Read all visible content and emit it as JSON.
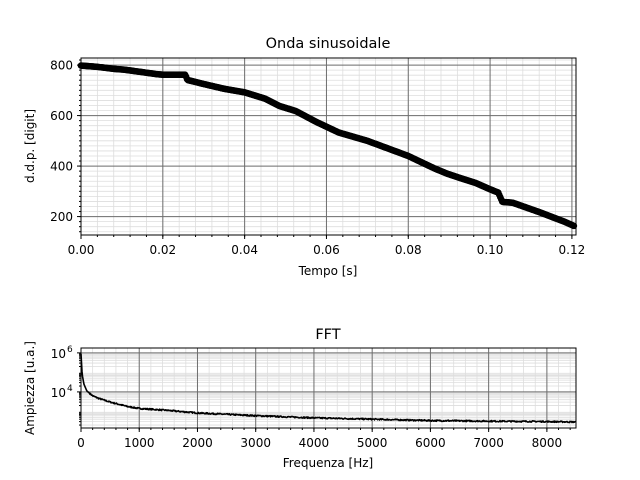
{
  "chart_data": [
    {
      "type": "scatter",
      "title": "Onda sinusoidale",
      "xlabel": "Tempo [s]",
      "ylabel": "d.d.p. [digit]",
      "xlim": [
        0.0,
        0.121
      ],
      "ylim": [
        127,
        828
      ],
      "xticks": [
        0.0,
        0.02,
        0.04,
        0.06,
        0.08,
        0.1,
        0.12
      ],
      "xtick_labels": [
        "0.00",
        "0.02",
        "0.04",
        "0.06",
        "0.08",
        "0.10",
        "0.12"
      ],
      "yticks": [
        200,
        400,
        600,
        800
      ],
      "ytick_labels": [
        "200",
        "400",
        "600",
        "800"
      ],
      "grid": "major and minor",
      "series": [
        {
          "color": "#000000",
          "x": [
            0.0,
            0.004,
            0.008,
            0.0105,
            0.015,
            0.0185,
            0.02,
            0.0255,
            0.026,
            0.03,
            0.035,
            0.04,
            0.045,
            0.0485,
            0.0525,
            0.0575,
            0.063,
            0.07,
            0.075,
            0.08,
            0.0835,
            0.0865,
            0.0895,
            0.093,
            0.0965,
            0.1,
            0.102,
            0.103,
            0.1055,
            0.109,
            0.1125,
            0.1155,
            0.118,
            0.1205
          ],
          "y": [
            798,
            793,
            785,
            782,
            772,
            764,
            762,
            762,
            741,
            725,
            706,
            692,
            667,
            638,
            618,
            575,
            533,
            500,
            470,
            440,
            413,
            390,
            370,
            351,
            333,
            308,
            295,
            258,
            255,
            235,
            215,
            196,
            181,
            163
          ]
        }
      ]
    },
    {
      "type": "line",
      "title": "FFT",
      "xlabel": "Frequenza [Hz]",
      "ylabel": "Ampiezza [u.a.]",
      "xlim": [
        0,
        8500
      ],
      "ylim_log10": [
        2.15,
        6.25
      ],
      "yscale": "log",
      "xticks": [
        0,
        1000,
        2000,
        3000,
        4000,
        5000,
        6000,
        7000,
        8000
      ],
      "xtick_labels": [
        "0",
        "1000",
        "2000",
        "3000",
        "4000",
        "5000",
        "6000",
        "7000",
        "8000"
      ],
      "yticks_log10": [
        4,
        6
      ],
      "ytick_labels": [
        [
          "10",
          "4"
        ],
        [
          "10",
          "6"
        ]
      ],
      "grid": "major and minor",
      "series": [
        {
          "color": "#000000",
          "x": [
            0,
            20,
            50,
            100,
            200,
            300,
            500,
            800,
            1000,
            1500,
            2000,
            3000,
            4000,
            5000,
            6000,
            7000,
            8000,
            8450
          ],
          "y_log10": [
            5.95,
            4.9,
            4.4,
            4.05,
            3.8,
            3.67,
            3.48,
            3.25,
            3.15,
            3.05,
            2.92,
            2.78,
            2.67,
            2.6,
            2.53,
            2.5,
            2.48,
            2.46
          ]
        }
      ]
    }
  ]
}
